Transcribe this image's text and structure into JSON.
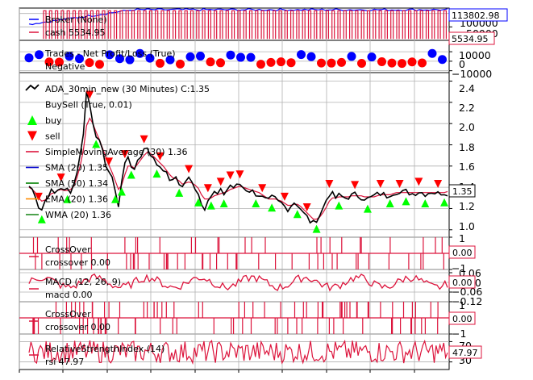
{
  "chart_data": [
    {
      "type": "line",
      "panel": "broker",
      "series": [
        {
          "name": "Broker (None)",
          "color": "#0000ff",
          "last": 113802.98
        },
        {
          "name": "cash 5534.95",
          "color": "#dc143c",
          "last": 5534.95
        }
      ],
      "yticks": [
        "100000",
        "50000"
      ],
      "ylim": [
        0,
        120000
      ],
      "value_tags": [
        "113802.98",
        "5534.95"
      ],
      "grid": true
    },
    {
      "type": "scatter",
      "panel": "trades",
      "series": [
        {
          "name": "Trades - Net Profit/Loss (True)",
          "color": "#0000ff"
        },
        {
          "name": "Negative",
          "color": "#ff0000"
        }
      ],
      "yticks": [
        "10000",
        "0",
        "−10000"
      ],
      "ylim": [
        -12000,
        22000
      ],
      "grid": true
    },
    {
      "type": "line",
      "panel": "price",
      "legend": [
        {
          "name": "ADA_30min_new (30 Minutes) C:1.35",
          "color": "#000000",
          "mark": "line"
        },
        {
          "name": "BuySell (True, 0.01)",
          "color": "#00ff00",
          "mark": "none"
        },
        {
          "name": "buy",
          "color": "#00ff00",
          "mark": "triangle-up"
        },
        {
          "name": "sell",
          "color": "#ff0000",
          "mark": "triangle-down"
        },
        {
          "name": "SimpleMovingAverage (30) 1.36",
          "color": "#dc143c",
          "mark": "line"
        },
        {
          "name": "SMA (20) 1.35",
          "color": "#0000cd",
          "mark": "line"
        },
        {
          "name": "SMA (50) 1.34",
          "color": "#008000",
          "mark": "line"
        },
        {
          "name": "EMA (20) 1.36",
          "color": "#ff8c00",
          "mark": "line"
        },
        {
          "name": "WMA (20) 1.36",
          "color": "#228b22",
          "mark": "line"
        }
      ],
      "yticks": [
        "2.4",
        "2.2",
        "2.0",
        "1.8",
        "1.6",
        "1.4",
        "1.2",
        "1.0"
      ],
      "ylim": [
        0.93,
        2.48
      ],
      "value_tag": "1.35",
      "x": [
        0,
        4,
        8,
        12,
        16,
        20,
        24,
        28,
        32,
        36,
        40,
        44,
        48,
        52,
        56,
        60,
        64,
        68,
        72,
        76,
        80,
        84,
        88,
        92,
        96,
        100,
        104,
        108,
        112,
        116,
        120,
        124,
        128,
        132,
        136,
        140,
        144,
        148,
        152,
        156,
        160,
        164,
        168,
        172,
        176,
        180,
        184,
        188,
        192,
        196,
        200,
        204,
        208,
        212,
        216,
        220,
        224,
        228,
        232,
        236,
        240,
        244,
        248,
        252,
        256,
        260,
        264,
        268,
        272,
        276,
        280,
        284,
        288,
        292,
        296,
        300,
        304,
        308,
        312,
        316,
        320,
        324,
        328,
        332,
        336,
        340,
        344,
        348,
        352,
        356,
        360,
        364,
        368,
        372,
        376,
        380,
        384,
        388,
        392,
        396,
        400,
        404,
        408,
        412,
        416,
        420,
        424,
        428,
        432,
        436,
        440,
        444,
        448,
        452,
        456,
        460,
        464,
        468,
        472,
        476,
        480,
        484,
        488,
        492,
        496,
        500,
        504,
        508,
        512,
        516,
        520,
        524
      ],
      "close": [
        1.41,
        1.38,
        1.33,
        1.22,
        1.19,
        1.27,
        1.33,
        1.36,
        1.34,
        1.38,
        1.4,
        1.36,
        1.38,
        1.37,
        1.43,
        1.55,
        1.7,
        1.92,
        2.3,
        2.18,
        2.02,
        1.9,
        1.82,
        1.73,
        1.62,
        1.55,
        1.47,
        1.38,
        1.22,
        1.45,
        1.62,
        1.7,
        1.61,
        1.54,
        1.66,
        1.7,
        1.76,
        1.78,
        1.72,
        1.66,
        1.62,
        1.6,
        1.58,
        1.52,
        1.48,
        1.45,
        1.5,
        1.44,
        1.4,
        1.46,
        1.48,
        1.44,
        1.4,
        1.35,
        1.24,
        1.21,
        1.3,
        1.32,
        1.35,
        1.33,
        1.36,
        1.34,
        1.38,
        1.42,
        1.4,
        1.41,
        1.43,
        1.4,
        1.38,
        1.37,
        1.36,
        1.34,
        1.33,
        1.3,
        1.28,
        1.27,
        1.3,
        1.29,
        1.26,
        1.25,
        1.22,
        1.2,
        1.23,
        1.26,
        1.24,
        1.2,
        1.15,
        1.12,
        1.08,
        1.06,
        1.1,
        1.14,
        1.2,
        1.28,
        1.34,
        1.33,
        1.3,
        1.32,
        1.31,
        1.3,
        1.31,
        1.32,
        1.33,
        1.32,
        1.31,
        1.3,
        1.29,
        1.3,
        1.32,
        1.33,
        1.34,
        1.33,
        1.32,
        1.34,
        1.35,
        1.36,
        1.34,
        1.35,
        1.36,
        1.35,
        1.34,
        1.35,
        1.36,
        1.35,
        1.34,
        1.35,
        1.36,
        1.35,
        1.34,
        1.35,
        1.35,
        1.35
      ],
      "sma30": [
        1.4,
        1.38,
        1.35,
        1.3,
        1.27,
        1.28,
        1.31,
        1.34,
        1.35,
        1.37,
        1.38,
        1.37,
        1.37,
        1.38,
        1.41,
        1.49,
        1.6,
        1.75,
        1.98,
        2.05,
        2.0,
        1.92,
        1.85,
        1.77,
        1.69,
        1.61,
        1.54,
        1.46,
        1.38,
        1.42,
        1.52,
        1.6,
        1.6,
        1.58,
        1.62,
        1.66,
        1.7,
        1.73,
        1.72,
        1.69,
        1.66,
        1.63,
        1.6,
        1.56,
        1.52,
        1.49,
        1.48,
        1.46,
        1.43,
        1.44,
        1.45,
        1.44,
        1.42,
        1.39,
        1.33,
        1.29,
        1.29,
        1.3,
        1.32,
        1.33,
        1.34,
        1.35,
        1.36,
        1.38,
        1.39,
        1.4,
        1.41,
        1.4,
        1.39,
        1.38,
        1.37,
        1.36,
        1.35,
        1.33,
        1.31,
        1.29,
        1.29,
        1.29,
        1.28,
        1.27,
        1.25,
        1.23,
        1.23,
        1.24,
        1.24,
        1.22,
        1.19,
        1.16,
        1.13,
        1.1,
        1.1,
        1.12,
        1.16,
        1.21,
        1.27,
        1.3,
        1.3,
        1.31,
        1.31,
        1.31,
        1.31,
        1.32,
        1.32,
        1.32,
        1.32,
        1.31,
        1.31,
        1.31,
        1.31,
        1.32,
        1.33,
        1.33,
        1.33,
        1.33,
        1.34,
        1.35,
        1.35,
        1.35,
        1.35,
        1.35,
        1.35,
        1.35,
        1.35,
        1.35,
        1.35,
        1.35,
        1.35,
        1.35,
        1.35,
        1.35,
        1.35,
        1.36
      ],
      "buy_idx": [
        4,
        12,
        21,
        27,
        29,
        32,
        40,
        47,
        53,
        57,
        61,
        71,
        76,
        84,
        90,
        97,
        106,
        113,
        118,
        124,
        130
      ],
      "sell_idx": [
        3,
        10,
        19,
        25,
        30,
        36,
        41,
        50,
        56,
        60,
        63,
        66,
        73,
        80,
        87,
        94,
        102,
        110,
        116,
        122,
        128
      ],
      "grid": true
    },
    {
      "type": "line",
      "panel": "crossover-1",
      "series": [
        {
          "name": "CrossOver",
          "color": "#dc143c"
        },
        {
          "name": "crossover 0.00",
          "color": "#dc143c"
        }
      ],
      "yticks": [
        "1",
        "−1"
      ],
      "ylim": [
        -1,
        1
      ],
      "value_tag": "0.00",
      "grid": true
    },
    {
      "type": "line",
      "panel": "macd",
      "series": [
        {
          "name": "MACD (12, 26, 9)",
          "color": "#dc143c"
        },
        {
          "name": "macd 0.00",
          "color": "#dc143c"
        }
      ],
      "yticks": [
        "0.06",
        "0.00",
        "−0.06",
        "−0.12"
      ],
      "ylim": [
        -0.12,
        0.08
      ],
      "value_tag": "0.00",
      "grid": true
    },
    {
      "type": "line",
      "panel": "crossover-2",
      "series": [
        {
          "name": "CrossOver",
          "color": "#dc143c"
        },
        {
          "name": "crossover 0.00",
          "color": "#dc143c"
        }
      ],
      "yticks": [
        "1",
        "−1"
      ],
      "ylim": [
        -1,
        1
      ],
      "value_tag": "0.00",
      "grid": true
    },
    {
      "type": "line",
      "panel": "rsi",
      "series": [
        {
          "name": "RelativeStrengthIndex (14)",
          "color": "#dc143c"
        },
        {
          "name": "rsi 47.97",
          "color": "#dc143c"
        }
      ],
      "yticks": [
        "70",
        "30"
      ],
      "ylim": [
        15,
        85
      ],
      "value_tag": "47.97",
      "grid": true
    }
  ]
}
